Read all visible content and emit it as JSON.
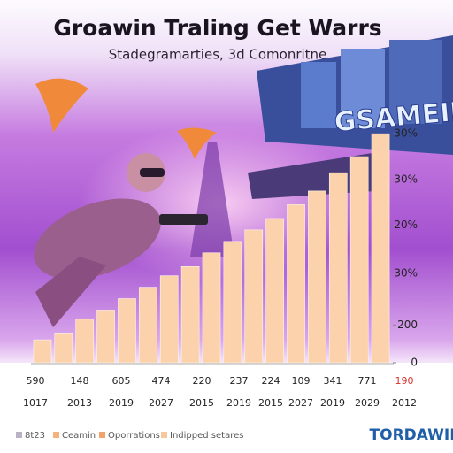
{
  "chart_data": {
    "type": "bar",
    "title": "Groawin Traling Get Warrs",
    "subtitle": "Stadegramarties, 3d Comonritne",
    "background_text": "GSAMEIN",
    "brand": "TORDAWIN",
    "values": [
      10,
      13,
      19,
      23,
      28,
      33,
      38,
      42,
      48,
      53,
      58,
      63,
      69,
      75,
      83,
      90,
      100
    ],
    "color": "#fbd2ab",
    "ylim": [
      0,
      102
    ],
    "yticks": [
      0,
      {
        "value": 16.5,
        "label": "200"
      },
      {
        "value": 39,
        "label": "30%"
      },
      {
        "value": 60,
        "label": "20%"
      },
      {
        "value": 80,
        "label": "30%"
      },
      {
        "value": 100,
        "label": "30%"
      }
    ],
    "label_row_top": [
      "590",
      "148",
      "605",
      "474",
      "220",
      "237",
      "224",
      "109",
      "341",
      "771",
      "190"
    ],
    "label_row_bottom": [
      "1017",
      "2013",
      "2019",
      "2027",
      "2015",
      "2019",
      "2015",
      "2027",
      "2019",
      "2029",
      "2012"
    ],
    "last_label_color": "#d8302a",
    "legend": [
      {
        "label": "8t23",
        "color": "#b9b2c4"
      },
      {
        "label": "Ceamin",
        "color": "#f4b27c"
      },
      {
        "label": "Oporrations",
        "color": "#f0a36a"
      },
      {
        "label": "Indipped setares",
        "color": "#f7c8a0"
      }
    ]
  }
}
